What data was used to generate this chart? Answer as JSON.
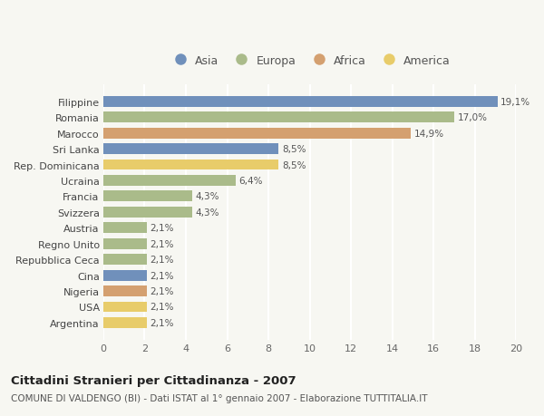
{
  "countries": [
    "Filippine",
    "Romania",
    "Marocco",
    "Sri Lanka",
    "Rep. Dominicana",
    "Ucraina",
    "Francia",
    "Svizzera",
    "Austria",
    "Regno Unito",
    "Repubblica Ceca",
    "Cina",
    "Nigeria",
    "USA",
    "Argentina"
  ],
  "values": [
    19.1,
    17.0,
    14.9,
    8.5,
    8.5,
    6.4,
    4.3,
    4.3,
    2.1,
    2.1,
    2.1,
    2.1,
    2.1,
    2.1,
    2.1
  ],
  "labels": [
    "19,1%",
    "17,0%",
    "14,9%",
    "8,5%",
    "8,5%",
    "6,4%",
    "4,3%",
    "4,3%",
    "2,1%",
    "2,1%",
    "2,1%",
    "2,1%",
    "2,1%",
    "2,1%",
    "2,1%"
  ],
  "continents": [
    "Asia",
    "Europa",
    "Africa",
    "Asia",
    "America",
    "Europa",
    "Europa",
    "Europa",
    "Europa",
    "Europa",
    "Europa",
    "Asia",
    "Africa",
    "America",
    "America"
  ],
  "colors": {
    "Asia": "#7090bb",
    "Europa": "#aabb8a",
    "Africa": "#d4a070",
    "America": "#e8cc6a"
  },
  "title": "Cittadini Stranieri per Cittadinanza - 2007",
  "subtitle": "COMUNE DI VALDENGO (BI) - Dati ISTAT al 1° gennaio 2007 - Elaborazione TUTTITALIA.IT",
  "xlim": [
    0,
    20
  ],
  "xticks": [
    0,
    2,
    4,
    6,
    8,
    10,
    12,
    14,
    16,
    18,
    20
  ],
  "background_color": "#f7f7f2",
  "grid_color": "#ffffff",
  "bar_height": 0.68,
  "label_fontsize": 7.5,
  "tick_fontsize": 8,
  "ytick_fontsize": 8,
  "title_fontsize": 9.5,
  "subtitle_fontsize": 7.5,
  "legend_entries": [
    "Asia",
    "Europa",
    "Africa",
    "America"
  ]
}
